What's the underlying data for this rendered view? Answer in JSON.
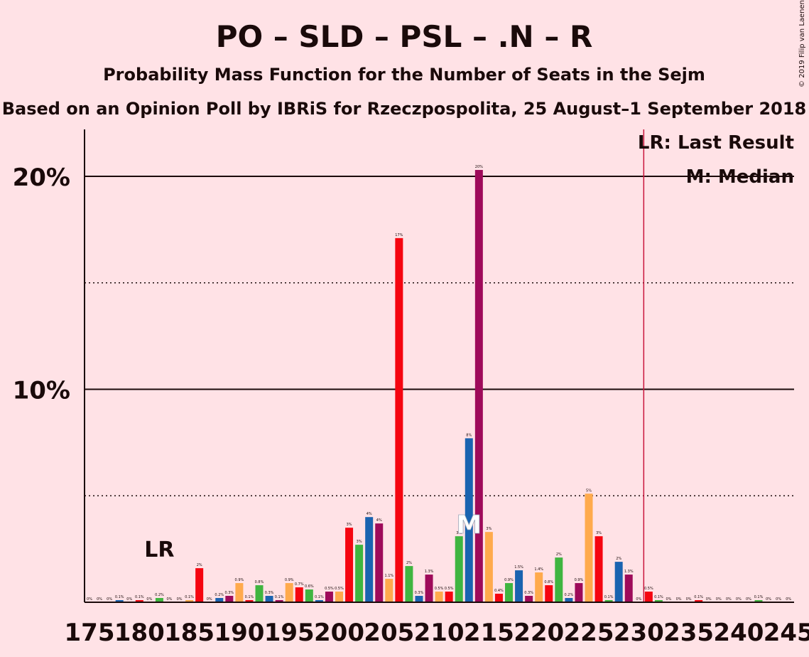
{
  "chart_data": {
    "type": "bar",
    "title": "PO – SLD – PSL – .N – R",
    "subtitle": "Probability Mass Function for the Number of Seats in the Sejm",
    "subtitle2": "Based on an Opinion Poll by IBRiS for Rzeczpospolita, 25 August–1 September 2018",
    "copyright": "© 2019 Filip van Laenen",
    "legend": {
      "lr": "LR: Last Result",
      "median": "M: Median"
    },
    "lr_marker": "LR",
    "median_marker": "M",
    "lr_seat": 182,
    "majority_seat": 231,
    "median_seat": 213,
    "ylim": [
      0,
      22
    ],
    "y_ticks": [
      {
        "value": 10,
        "label": "10%"
      },
      {
        "value": 20,
        "label": "20%"
      }
    ],
    "dotted_lines": [
      5,
      15
    ],
    "x_ticks": [
      {
        "value": 175,
        "label": "175"
      },
      {
        "value": 180,
        "label": "180"
      },
      {
        "value": 185,
        "label": "185"
      },
      {
        "value": 190,
        "label": "190"
      },
      {
        "value": 195,
        "label": "195"
      },
      {
        "value": 200,
        "label": "200"
      },
      {
        "value": 205,
        "label": "205"
      },
      {
        "value": 210,
        "label": "210"
      },
      {
        "value": 215,
        "label": "215"
      },
      {
        "value": 220,
        "label": "220"
      },
      {
        "value": 225,
        "label": "225"
      },
      {
        "value": 230,
        "label": "230"
      },
      {
        "value": 235,
        "label": "235"
      },
      {
        "value": 240,
        "label": "240"
      },
      {
        "value": 245,
        "label": "245"
      }
    ],
    "colors": {
      "red": "#F50510",
      "orange": "#FFAA4C",
      "green": "#3FB540",
      "blue": "#1A63B0",
      "purple": "#9E0A5A",
      "lr_line": "#C8143C",
      "axis": "#1a0a0a"
    },
    "bars": [
      {
        "seat": 175,
        "value": 0.0,
        "label": "0%",
        "color": "red"
      },
      {
        "seat": 176,
        "value": 0.0,
        "label": "0%",
        "color": "orange"
      },
      {
        "seat": 177,
        "value": 0.0,
        "label": "0%",
        "color": "green"
      },
      {
        "seat": 178,
        "value": 0.1,
        "label": "0.1%",
        "color": "blue"
      },
      {
        "seat": 179,
        "value": 0.0,
        "label": "0%",
        "color": "purple"
      },
      {
        "seat": 180,
        "value": 0.1,
        "label": "0.1%",
        "color": "red"
      },
      {
        "seat": 181,
        "value": 0.0,
        "label": "0%",
        "color": "orange"
      },
      {
        "seat": 182,
        "value": 0.2,
        "label": "0.2%",
        "color": "green"
      },
      {
        "seat": 183,
        "value": 0.0,
        "label": "0%",
        "color": "blue"
      },
      {
        "seat": 184,
        "value": 0.0,
        "label": "0%",
        "color": "purple"
      },
      {
        "seat": 185,
        "value": 0.1,
        "label": "0.1%",
        "color": "orange"
      },
      {
        "seat": 186,
        "value": 1.6,
        "label": "2%",
        "color": "red"
      },
      {
        "seat": 187,
        "value": 0.0,
        "label": "0%",
        "color": "green"
      },
      {
        "seat": 188,
        "value": 0.2,
        "label": "0.2%",
        "color": "blue"
      },
      {
        "seat": 189,
        "value": 0.3,
        "label": "0.3%",
        "color": "purple"
      },
      {
        "seat": 190,
        "value": 0.9,
        "label": "0.9%",
        "color": "orange"
      },
      {
        "seat": 191,
        "value": 0.1,
        "label": "0.1%",
        "color": "red"
      },
      {
        "seat": 192,
        "value": 0.8,
        "label": "0.8%",
        "color": "green"
      },
      {
        "seat": 193,
        "value": 0.3,
        "label": "0.3%",
        "color": "blue"
      },
      {
        "seat": 194,
        "value": 0.1,
        "label": "0.1%",
        "color": "purple"
      },
      {
        "seat": 195,
        "value": 0.9,
        "label": "0.9%",
        "color": "orange"
      },
      {
        "seat": 196,
        "value": 0.7,
        "label": "0.7%",
        "color": "red"
      },
      {
        "seat": 197,
        "value": 0.6,
        "label": "0.6%",
        "color": "green"
      },
      {
        "seat": 198,
        "value": 0.1,
        "label": "0.1%",
        "color": "blue"
      },
      {
        "seat": 199,
        "value": 0.5,
        "label": "0.5%",
        "color": "purple"
      },
      {
        "seat": 200,
        "value": 0.5,
        "label": "0.5%",
        "color": "orange"
      },
      {
        "seat": 201,
        "value": 3.5,
        "label": "3%",
        "color": "red"
      },
      {
        "seat": 202,
        "value": 2.7,
        "label": "3%",
        "color": "green"
      },
      {
        "seat": 203,
        "value": 4.0,
        "label": "4%",
        "color": "blue"
      },
      {
        "seat": 204,
        "value": 3.7,
        "label": "4%",
        "color": "purple"
      },
      {
        "seat": 205,
        "value": 1.1,
        "label": "1.1%",
        "color": "orange"
      },
      {
        "seat": 206,
        "value": 17.1,
        "label": "17%",
        "color": "red"
      },
      {
        "seat": 207,
        "value": 1.7,
        "label": "2%",
        "color": "green"
      },
      {
        "seat": 208,
        "value": 0.3,
        "label": "0.3%",
        "color": "blue"
      },
      {
        "seat": 209,
        "value": 1.3,
        "label": "1.3%",
        "color": "purple"
      },
      {
        "seat": 210,
        "value": 0.5,
        "label": "0.5%",
        "color": "orange"
      },
      {
        "seat": 211,
        "value": 0.5,
        "label": "0.5%",
        "color": "red"
      },
      {
        "seat": 212,
        "value": 3.1,
        "label": "3%",
        "color": "green"
      },
      {
        "seat": 213,
        "value": 7.7,
        "label": "8%",
        "color": "blue"
      },
      {
        "seat": 214,
        "value": 20.3,
        "label": "20%",
        "color": "purple"
      },
      {
        "seat": 215,
        "value": 3.3,
        "label": "3%",
        "color": "orange"
      },
      {
        "seat": 216,
        "value": 0.4,
        "label": "0.4%",
        "color": "red"
      },
      {
        "seat": 217,
        "value": 0.9,
        "label": "0.9%",
        "color": "green"
      },
      {
        "seat": 218,
        "value": 1.5,
        "label": "1.5%",
        "color": "blue"
      },
      {
        "seat": 219,
        "value": 0.3,
        "label": "0.3%",
        "color": "purple"
      },
      {
        "seat": 220,
        "value": 1.4,
        "label": "1.4%",
        "color": "orange"
      },
      {
        "seat": 221,
        "value": 0.8,
        "label": "0.8%",
        "color": "red"
      },
      {
        "seat": 222,
        "value": 2.1,
        "label": "2%",
        "color": "green"
      },
      {
        "seat": 223,
        "value": 0.2,
        "label": "0.2%",
        "color": "blue"
      },
      {
        "seat": 224,
        "value": 0.9,
        "label": "0.9%",
        "color": "purple"
      },
      {
        "seat": 225,
        "value": 5.1,
        "label": "5%",
        "color": "orange"
      },
      {
        "seat": 226,
        "value": 3.1,
        "label": "3%",
        "color": "red"
      },
      {
        "seat": 227,
        "value": 0.1,
        "label": "0.1%",
        "color": "green"
      },
      {
        "seat": 228,
        "value": 1.9,
        "label": "2%",
        "color": "blue"
      },
      {
        "seat": 229,
        "value": 1.3,
        "label": "1.3%",
        "color": "purple"
      },
      {
        "seat": 230,
        "value": 0.0,
        "label": "0%",
        "color": "orange"
      },
      {
        "seat": 231,
        "value": 0.5,
        "label": "0.5%",
        "color": "red"
      },
      {
        "seat": 232,
        "value": 0.1,
        "label": "0.1%",
        "color": "green"
      },
      {
        "seat": 233,
        "value": 0.0,
        "label": "0%",
        "color": "blue"
      },
      {
        "seat": 234,
        "value": 0.0,
        "label": "0%",
        "color": "purple"
      },
      {
        "seat": 235,
        "value": 0.0,
        "label": "0%",
        "color": "orange"
      },
      {
        "seat": 236,
        "value": 0.1,
        "label": "0.1%",
        "color": "red"
      },
      {
        "seat": 237,
        "value": 0.0,
        "label": "0%",
        "color": "green"
      },
      {
        "seat": 238,
        "value": 0.0,
        "label": "0%",
        "color": "blue"
      },
      {
        "seat": 239,
        "value": 0.0,
        "label": "0%",
        "color": "purple"
      },
      {
        "seat": 240,
        "value": 0.0,
        "label": "0%",
        "color": "orange"
      },
      {
        "seat": 241,
        "value": 0.0,
        "label": "0%",
        "color": "red"
      },
      {
        "seat": 242,
        "value": 0.1,
        "label": "0.1%",
        "color": "green"
      },
      {
        "seat": 243,
        "value": 0.0,
        "label": "0%",
        "color": "blue"
      },
      {
        "seat": 244,
        "value": 0.0,
        "label": "0%",
        "color": "purple"
      },
      {
        "seat": 245,
        "value": 0.0,
        "label": "0%",
        "color": "orange"
      }
    ]
  }
}
